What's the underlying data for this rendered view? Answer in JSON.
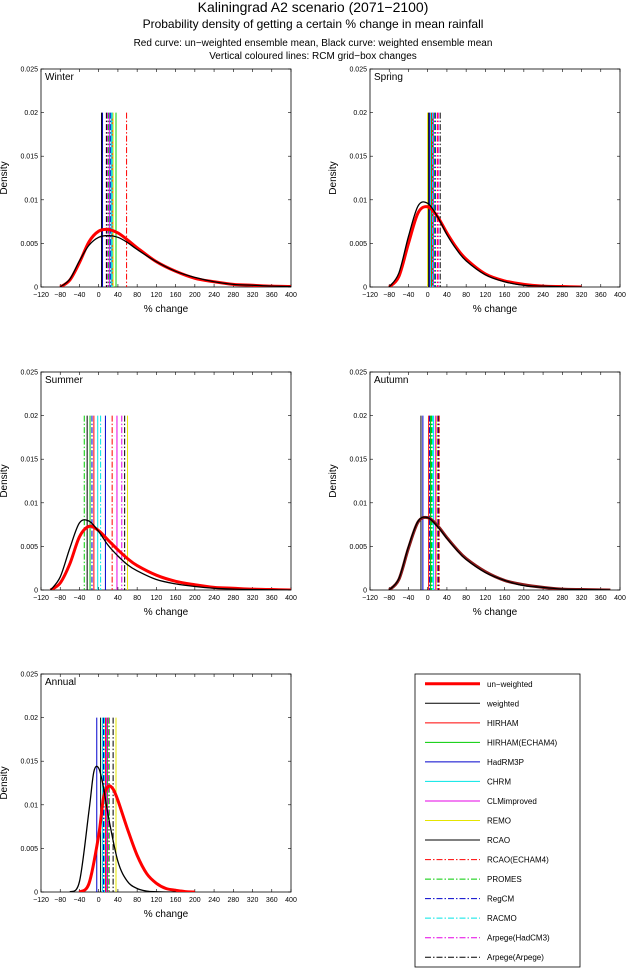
{
  "header": {
    "title": "Kaliningrad A2 scenario (2071−2100)",
    "subtitle": "Probability density of getting a certain % change in mean rainfall",
    "note1": "Red curve: un−weighted ensemble mean, Black curve: weighted ensemble mean",
    "note2": "Vertical coloured lines: RCM grid−box changes"
  },
  "legend": [
    {
      "label": "un−weighted",
      "color": "#ff0000",
      "dash": "solid",
      "thick": true
    },
    {
      "label": "weighted",
      "color": "#000000",
      "dash": "solid",
      "thick": false
    },
    {
      "label": "HIRHAM",
      "color": "#ff0000",
      "dash": "solid",
      "thick": false
    },
    {
      "label": "HIRHAM(ECHAM4)",
      "color": "#00cc00",
      "dash": "solid",
      "thick": false
    },
    {
      "label": "HadRM3P",
      "color": "#0000cc",
      "dash": "solid",
      "thick": false
    },
    {
      "label": "CHRM",
      "color": "#00e5e5",
      "dash": "solid",
      "thick": false
    },
    {
      "label": "CLMimproved",
      "color": "#e500e5",
      "dash": "solid",
      "thick": false
    },
    {
      "label": "REMO",
      "color": "#e5e500",
      "dash": "solid",
      "thick": false
    },
    {
      "label": "RCAO",
      "color": "#000000",
      "dash": "solid",
      "thick": false
    },
    {
      "label": "RCAO(ECHAM4)",
      "color": "#ff0000",
      "dash": "dashdot",
      "thick": false
    },
    {
      "label": "PROMES",
      "color": "#00cc00",
      "dash": "dashdot",
      "thick": false
    },
    {
      "label": "RegCM",
      "color": "#0000cc",
      "dash": "dashdot",
      "thick": false
    },
    {
      "label": "RACMO",
      "color": "#00e5e5",
      "dash": "dashdot",
      "thick": false
    },
    {
      "label": "Arpege(HadCM3)",
      "color": "#e500e5",
      "dash": "dashdot",
      "thick": false
    },
    {
      "label": "Arpege(Arpege)",
      "color": "#000000",
      "dash": "dashdot",
      "thick": false
    }
  ],
  "chart_data": [
    {
      "type": "line",
      "title": "Winter",
      "xlabel": "% change",
      "ylabel": "Density",
      "xlim": [
        -120,
        400
      ],
      "ylim": [
        0,
        0.025
      ],
      "xticks": [
        -120,
        -80,
        -40,
        0,
        40,
        80,
        120,
        160,
        200,
        240,
        280,
        320,
        360,
        400
      ],
      "yticks": [
        0,
        0.005,
        0.01,
        0.015,
        0.02,
        0.025
      ],
      "ytick_labels": [
        "0",
        "0.005",
        "0.01",
        "0.015",
        "0.02",
        "0.025"
      ],
      "series": [
        {
          "name": "un−weighted",
          "color": "#ff0000",
          "x": [
            -80,
            -60,
            -40,
            -20,
            0,
            20,
            40,
            60,
            80,
            120,
            160,
            200,
            240,
            280,
            320,
            360,
            400
          ],
          "y": [
            0,
            0.0008,
            0.0028,
            0.0052,
            0.0064,
            0.0066,
            0.0062,
            0.0054,
            0.0045,
            0.0029,
            0.0018,
            0.001,
            0.0006,
            0.0003,
            0.0002,
            0.0001,
            5e-05
          ]
        },
        {
          "name": "weighted",
          "color": "#000000",
          "x": [
            -80,
            -60,
            -40,
            -20,
            0,
            20,
            40,
            60,
            80,
            120,
            160,
            200,
            240,
            280,
            320,
            360,
            400
          ],
          "y": [
            0,
            0.0009,
            0.003,
            0.0048,
            0.0057,
            0.0059,
            0.0057,
            0.0051,
            0.0043,
            0.0029,
            0.0018,
            0.0011,
            0.0006,
            0.0003,
            0.0002,
            0.0001,
            5e-05
          ]
        }
      ],
      "rcm_lines": [
        {
          "name": "HIRHAM",
          "x": 28
        },
        {
          "name": "HIRHAM(ECHAM4)",
          "x": 36
        },
        {
          "name": "HadRM3P",
          "x": 8
        },
        {
          "name": "CHRM",
          "x": 26
        },
        {
          "name": "CLMimproved",
          "x": 22
        },
        {
          "name": "REMO",
          "x": 30
        },
        {
          "name": "RCAO",
          "x": 6
        },
        {
          "name": "RCAO(ECHAM4)",
          "x": 58
        },
        {
          "name": "PROMES",
          "x": 20
        },
        {
          "name": "RegCM",
          "x": 24
        },
        {
          "name": "RACMO",
          "x": 28
        },
        {
          "name": "Arpege(HadCM3)",
          "x": 18
        },
        {
          "name": "Arpege(Arpege)",
          "x": 16
        }
      ]
    },
    {
      "type": "line",
      "title": "Spring",
      "xlabel": "% change",
      "ylabel": "Density",
      "xlim": [
        -120,
        400
      ],
      "ylim": [
        0,
        0.025
      ],
      "xticks": [
        -120,
        -80,
        -40,
        0,
        40,
        80,
        120,
        160,
        200,
        240,
        280,
        320,
        360,
        400
      ],
      "yticks": [
        0,
        0.005,
        0.01,
        0.015,
        0.02,
        0.025
      ],
      "ytick_labels": [
        "0",
        "0.005",
        "0.01",
        "0.015",
        "0.02",
        "0.025"
      ],
      "series": [
        {
          "name": "un−weighted",
          "color": "#ff0000",
          "x": [
            -80,
            -60,
            -40,
            -20,
            0,
            20,
            40,
            60,
            80,
            120,
            160,
            200,
            240,
            280,
            320
          ],
          "y": [
            0,
            0.0012,
            0.005,
            0.0085,
            0.0092,
            0.0081,
            0.0062,
            0.0045,
            0.0032,
            0.0015,
            0.0007,
            0.0003,
            0.0001,
            5e-05,
            0
          ]
        },
        {
          "name": "weighted",
          "color": "#000000",
          "x": [
            -80,
            -60,
            -40,
            -20,
            0,
            20,
            40,
            60,
            80,
            120,
            160,
            200,
            240,
            280,
            320
          ],
          "y": [
            0,
            0.0016,
            0.0058,
            0.0093,
            0.0096,
            0.0081,
            0.006,
            0.0043,
            0.003,
            0.0014,
            0.0006,
            0.0002,
            0.0001,
            3e-05,
            0
          ]
        }
      ],
      "rcm_lines": [
        {
          "name": "HIRHAM",
          "x": 8
        },
        {
          "name": "HIRHAM(ECHAM4)",
          "x": 10
        },
        {
          "name": "HadRM3P",
          "x": 4
        },
        {
          "name": "CHRM",
          "x": 6
        },
        {
          "name": "CLMimproved",
          "x": 12
        },
        {
          "name": "REMO",
          "x": 0
        },
        {
          "name": "RCAO",
          "x": 2
        },
        {
          "name": "RCAO(ECHAM4)",
          "x": 20
        },
        {
          "name": "PROMES",
          "x": 14
        },
        {
          "name": "RegCM",
          "x": 16
        },
        {
          "name": "RACMO",
          "x": 10
        },
        {
          "name": "Arpege(HadCM3)",
          "x": 22
        },
        {
          "name": "Arpege(Arpege)",
          "x": 26
        }
      ]
    },
    {
      "type": "line",
      "title": "Summer",
      "xlabel": "% change",
      "ylabel": "Density",
      "xlim": [
        -120,
        400
      ],
      "ylim": [
        0,
        0.025
      ],
      "xticks": [
        -120,
        -80,
        -40,
        0,
        40,
        80,
        120,
        160,
        200,
        240,
        280,
        320,
        360,
        400
      ],
      "yticks": [
        0,
        0.005,
        0.01,
        0.015,
        0.02,
        0.025
      ],
      "ytick_labels": [
        "0",
        "0.005",
        "0.01",
        "0.015",
        "0.02",
        "0.025"
      ],
      "series": [
        {
          "name": "un−weighted",
          "color": "#ff0000",
          "x": [
            -100,
            -80,
            -60,
            -40,
            -20,
            0,
            20,
            40,
            60,
            80,
            120,
            160,
            200,
            240,
            280,
            320,
            360,
            400
          ],
          "y": [
            0,
            0.0008,
            0.003,
            0.0061,
            0.0073,
            0.0068,
            0.0057,
            0.0046,
            0.0036,
            0.0028,
            0.0017,
            0.001,
            0.0006,
            0.0003,
            0.0002,
            0.0001,
            5e-05,
            0
          ]
        },
        {
          "name": "weighted",
          "color": "#000000",
          "x": [
            -100,
            -80,
            -60,
            -40,
            -20,
            0,
            20,
            40,
            60,
            80,
            120,
            160,
            200,
            240,
            280,
            320,
            360,
            400
          ],
          "y": [
            0,
            0.0015,
            0.0048,
            0.0077,
            0.0079,
            0.0067,
            0.0051,
            0.0039,
            0.0029,
            0.0022,
            0.0012,
            0.0007,
            0.0004,
            0.0002,
            0.0001,
            5e-05,
            2e-05,
            0
          ]
        }
      ],
      "rcm_lines": [
        {
          "name": "HIRHAM",
          "x": -10
        },
        {
          "name": "HIRHAM(ECHAM4)",
          "x": -18
        },
        {
          "name": "HadRM3P",
          "x": 14
        },
        {
          "name": "CHRM",
          "x": -2
        },
        {
          "name": "CLMimproved",
          "x": 38
        },
        {
          "name": "REMO",
          "x": 60
        },
        {
          "name": "RCAO",
          "x": -24
        },
        {
          "name": "RCAO(ECHAM4)",
          "x": 28
        },
        {
          "name": "PROMES",
          "x": -30
        },
        {
          "name": "RegCM",
          "x": -14
        },
        {
          "name": "RACMO",
          "x": 4
        },
        {
          "name": "Arpege(HadCM3)",
          "x": 48
        },
        {
          "name": "Arpege(Arpege)",
          "x": 54
        }
      ]
    },
    {
      "type": "line",
      "title": "Autumn",
      "xlabel": "% change",
      "ylabel": "Density",
      "xlim": [
        -120,
        400
      ],
      "ylim": [
        0,
        0.025
      ],
      "xticks": [
        -120,
        -80,
        -40,
        0,
        40,
        80,
        120,
        160,
        200,
        240,
        280,
        320,
        360,
        400
      ],
      "yticks": [
        0,
        0.005,
        0.01,
        0.015,
        0.02,
        0.025
      ],
      "ytick_labels": [
        "0",
        "0.005",
        "0.01",
        "0.015",
        "0.02",
        "0.025"
      ],
      "series": [
        {
          "name": "un−weighted",
          "color": "#8b1a1a",
          "x": [
            -80,
            -60,
            -40,
            -20,
            0,
            20,
            40,
            60,
            80,
            120,
            160,
            200,
            240,
            280,
            320,
            360,
            380
          ],
          "y": [
            0,
            0.0012,
            0.0048,
            0.0078,
            0.0083,
            0.0074,
            0.006,
            0.0047,
            0.0036,
            0.0021,
            0.0011,
            0.0006,
            0.0003,
            0.0001,
            5e-05,
            2e-05,
            0
          ]
        },
        {
          "name": "weighted",
          "color": "#000000",
          "x": [
            -80,
            -60,
            -40,
            -20,
            0,
            20,
            40,
            60,
            80,
            120,
            160,
            200,
            240,
            280,
            320,
            360,
            380
          ],
          "y": [
            0,
            0.0013,
            0.005,
            0.0079,
            0.0083,
            0.0073,
            0.0059,
            0.0046,
            0.0035,
            0.002,
            0.0011,
            0.0005,
            0.0003,
            0.0001,
            5e-05,
            2e-05,
            0
          ]
        }
      ],
      "rcm_lines": [
        {
          "name": "HIRHAM",
          "x": 2
        },
        {
          "name": "HIRHAM(ECHAM4)",
          "x": 6
        },
        {
          "name": "HadRM3P",
          "x": -10
        },
        {
          "name": "CHRM",
          "x": 12
        },
        {
          "name": "CLMimproved",
          "x": 16
        },
        {
          "name": "REMO",
          "x": 18
        },
        {
          "name": "RCAO",
          "x": -14
        },
        {
          "name": "RCAO(ECHAM4)",
          "x": 24
        },
        {
          "name": "PROMES",
          "x": 8
        },
        {
          "name": "RegCM",
          "x": 4
        },
        {
          "name": "RACMO",
          "x": 10
        },
        {
          "name": "Arpege(HadCM3)",
          "x": 20
        },
        {
          "name": "Arpege(Arpege)",
          "x": 22
        }
      ]
    },
    {
      "type": "line",
      "title": "Annual",
      "xlabel": "% change",
      "ylabel": "Density",
      "xlim": [
        -120,
        400
      ],
      "ylim": [
        0,
        0.025
      ],
      "xticks": [
        -120,
        -80,
        -40,
        0,
        40,
        80,
        120,
        160,
        200,
        240,
        280,
        320,
        360,
        400
      ],
      "yticks": [
        0,
        0.005,
        0.01,
        0.015,
        0.02,
        0.025
      ],
      "ytick_labels": [
        "0",
        "0.005",
        "0.01",
        "0.015",
        "0.02",
        "0.025"
      ],
      "series": [
        {
          "name": "un−weighted",
          "color": "#ff0000",
          "x": [
            -40,
            -20,
            0,
            10,
            20,
            30,
            40,
            60,
            80,
            100,
            120,
            140,
            160,
            180,
            200
          ],
          "y": [
            0,
            0.001,
            0.0065,
            0.0108,
            0.0121,
            0.0118,
            0.0105,
            0.0072,
            0.0042,
            0.0021,
            0.001,
            0.0004,
            0.0002,
            5e-05,
            0
          ]
        },
        {
          "name": "weighted",
          "color": "#000000",
          "x": [
            -60,
            -40,
            -20,
            -10,
            0,
            10,
            20,
            40,
            60,
            80,
            100,
            120,
            140,
            160
          ],
          "y": [
            0,
            0.0012,
            0.0094,
            0.0138,
            0.0142,
            0.012,
            0.0087,
            0.0035,
            0.0012,
            0.0004,
            0.0001,
            3e-05,
            0,
            0
          ]
        }
      ],
      "rcm_lines": [
        {
          "name": "HIRHAM",
          "x": 14
        },
        {
          "name": "HIRHAM(ECHAM4)",
          "x": 18
        },
        {
          "name": "HadRM3P",
          "x": -4
        },
        {
          "name": "CHRM",
          "x": 8
        },
        {
          "name": "CLMimproved",
          "x": 16
        },
        {
          "name": "REMO",
          "x": 36
        },
        {
          "name": "RCAO",
          "x": 4
        },
        {
          "name": "RCAO(ECHAM4)",
          "x": 20
        },
        {
          "name": "PROMES",
          "x": 22
        },
        {
          "name": "RegCM",
          "x": 10
        },
        {
          "name": "RACMO",
          "x": 12
        },
        {
          "name": "Arpege(HadCM3)",
          "x": 20
        },
        {
          "name": "Arpege(Arpege)",
          "x": 30
        }
      ]
    }
  ]
}
